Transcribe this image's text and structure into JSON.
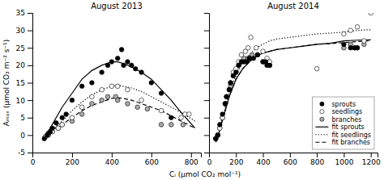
{
  "chart_data": [
    {
      "type": "scatter",
      "title": "August 2013",
      "xlabel": "Cᵢ (μmol CO₂ mol⁻¹)",
      "ylabel": "Aₘₐₓ (μmol CO₂ m⁻² s⁻¹)",
      "xlim": [
        0,
        850
      ],
      "xticks": [
        0,
        200,
        400,
        600,
        800
      ],
      "ylim": [
        -5,
        35
      ],
      "yticks": [
        -5,
        0,
        5,
        10,
        15,
        20,
        25,
        30,
        35
      ],
      "grid": false,
      "series": [
        {
          "type": "scatter",
          "marker": "circle",
          "color": "#000000",
          "x": [
            60,
            75,
            80,
            90,
            100,
            120,
            150,
            170,
            200,
            250,
            300,
            350,
            380,
            400,
            430,
            450,
            460,
            480,
            500,
            520,
            550,
            600,
            650,
            700
          ],
          "values": [
            -1,
            0,
            0.5,
            1,
            2,
            3.5,
            5,
            6,
            10,
            14,
            15,
            18,
            20,
            21,
            22,
            24.5,
            20,
            21,
            20,
            19,
            18,
            15,
            12,
            5
          ]
        },
        {
          "type": "scatter",
          "marker": "circle",
          "color": "#ffffff",
          "x": [
            65,
            80,
            100,
            130,
            150,
            200,
            250,
            300,
            350,
            400,
            430,
            480,
            550,
            650,
            750,
            770,
            790
          ],
          "values": [
            -0.5,
            0,
            1,
            2,
            3,
            5,
            8,
            11,
            13,
            14,
            14,
            13,
            10,
            7,
            5,
            6,
            6
          ]
        },
        {
          "type": "scatter",
          "marker": "circle",
          "color": "#aaaaaa",
          "x": [
            65,
            80,
            100,
            130,
            150,
            200,
            250,
            300,
            350,
            380,
            420,
            430,
            480,
            530,
            580,
            650,
            700,
            760
          ],
          "values": [
            -0.5,
            0,
            1,
            2,
            3,
            4,
            6,
            9,
            10,
            11,
            11,
            10,
            9,
            8,
            7.5,
            3,
            3,
            3
          ]
        },
        {
          "type": "line",
          "line_style": "solid",
          "color": "#000000",
          "x": [
            60,
            80,
            100,
            150,
            200,
            250,
            300,
            350,
            400,
            430,
            460,
            500,
            550,
            600,
            650,
            700,
            750,
            820
          ],
          "values": [
            -1,
            1,
            3,
            8,
            12,
            16,
            18.5,
            20,
            21,
            21,
            20.5,
            19.5,
            18,
            16,
            13,
            10,
            6.5,
            2
          ]
        },
        {
          "type": "line",
          "line_style": "dotted",
          "color": "#000000",
          "x": [
            60,
            80,
            100,
            150,
            200,
            250,
            300,
            350,
            400,
            430,
            460,
            500,
            550,
            600,
            650,
            700,
            750,
            820
          ],
          "values": [
            -0.5,
            0.5,
            1.5,
            4,
            7,
            9.5,
            11.5,
            13,
            14,
            14.2,
            14,
            13.5,
            12.5,
            11,
            9.5,
            8,
            6.5,
            4
          ]
        },
        {
          "type": "line",
          "line_style": "dashed",
          "color": "#000000",
          "x": [
            60,
            80,
            100,
            150,
            200,
            250,
            300,
            350,
            400,
            430,
            460,
            500,
            550,
            600,
            650,
            700,
            750,
            820
          ],
          "values": [
            -0.5,
            0.5,
            1.5,
            3,
            5,
            7,
            8.5,
            9.5,
            10.5,
            10.7,
            10.5,
            10,
            9,
            8,
            7,
            5.5,
            4,
            2
          ]
        }
      ]
    },
    {
      "type": "scatter",
      "title": "August 2014",
      "xlim": [
        0,
        1250
      ],
      "xticks": [
        0,
        200,
        400,
        600,
        800,
        1000,
        1200
      ],
      "ylim": [
        -5,
        35
      ],
      "yticks": [
        -5,
        0,
        5,
        10,
        15,
        20,
        25,
        30,
        35
      ],
      "grid": false,
      "tick_labels": "x",
      "legend": "lower right",
      "series": [
        {
          "name": "sprouts",
          "type": "scatter",
          "marker": "circle",
          "color": "#000000",
          "x": [
            50,
            65,
            80,
            100,
            120,
            130,
            150,
            160,
            180,
            200,
            220,
            240,
            260,
            280,
            300,
            330,
            360,
            400,
            420,
            430,
            450,
            1000,
            1050,
            1080,
            1100
          ],
          "values": [
            -1,
            0,
            3,
            6,
            9,
            11,
            13,
            15,
            17,
            18,
            20,
            21,
            21,
            21,
            22,
            22,
            23,
            21,
            21,
            20,
            20,
            26,
            25,
            25,
            25
          ]
        },
        {
          "name": "seedlings",
          "type": "scatter",
          "marker": "circle",
          "color": "#ffffff",
          "x": [
            50,
            65,
            80,
            100,
            120,
            130,
            150,
            160,
            180,
            200,
            220,
            240,
            270,
            290,
            310,
            350,
            400,
            430,
            450,
            800,
            1000,
            1050,
            1100,
            1150,
            1200
          ],
          "values": [
            -1,
            0,
            2,
            5,
            9,
            11,
            13,
            15,
            18,
            19,
            21,
            23,
            24,
            25,
            28,
            25,
            24,
            22,
            21,
            19,
            29,
            30,
            31,
            27,
            35
          ]
        },
        {
          "name": "branches",
          "type": "scatter",
          "marker": "circle",
          "color": "#aaaaaa",
          "x": [
            50,
            65,
            80,
            100,
            120,
            130,
            150,
            160,
            180,
            200,
            220,
            240,
            260,
            290,
            320,
            360,
            400,
            420,
            430,
            450,
            1000,
            1050,
            1080,
            1100,
            1150
          ],
          "values": [
            -1,
            0,
            2,
            5,
            9,
            11,
            13,
            14,
            17,
            18,
            20,
            21,
            22,
            22,
            23,
            23,
            21,
            21,
            21,
            20,
            25,
            26,
            25,
            25,
            26
          ]
        },
        {
          "name": "fit sprouts",
          "type": "line",
          "line_style": "solid",
          "color": "#000000",
          "x": [
            50,
            70,
            90,
            120,
            150,
            200,
            250,
            300,
            350,
            400,
            450,
            500,
            600,
            700,
            800,
            900,
            1000,
            1100,
            1200
          ],
          "values": [
            -2,
            0,
            3,
            7,
            11,
            16,
            19,
            21,
            22.5,
            23.5,
            24,
            24.5,
            25,
            25.5,
            26,
            26.3,
            27,
            27.2,
            27.3
          ]
        },
        {
          "name": "fit seedlings",
          "type": "line",
          "line_style": "dotted",
          "color": "#000000",
          "x": [
            50,
            70,
            90,
            120,
            150,
            200,
            250,
            300,
            350,
            400,
            450,
            500,
            600,
            700,
            800,
            900,
            1000,
            1100,
            1200
          ],
          "values": [
            -2,
            0,
            4,
            8,
            12,
            17,
            21,
            23,
            25,
            26,
            27,
            27.5,
            28,
            28.5,
            29,
            29.2,
            29.5,
            30,
            30.2
          ]
        },
        {
          "name": "fit branches",
          "type": "line",
          "line_style": "dashed",
          "color": "#000000",
          "x": [
            50,
            70,
            90,
            120,
            150,
            200,
            250,
            300,
            350,
            400,
            450,
            500,
            600,
            700,
            800,
            900,
            1000,
            1100,
            1200
          ],
          "values": [
            -2,
            0,
            3,
            7,
            11,
            16,
            19,
            21,
            22.5,
            23.5,
            24,
            24.5,
            25,
            25.5,
            26,
            26.2,
            26.5,
            26.8,
            27.0
          ]
        }
      ]
    }
  ]
}
